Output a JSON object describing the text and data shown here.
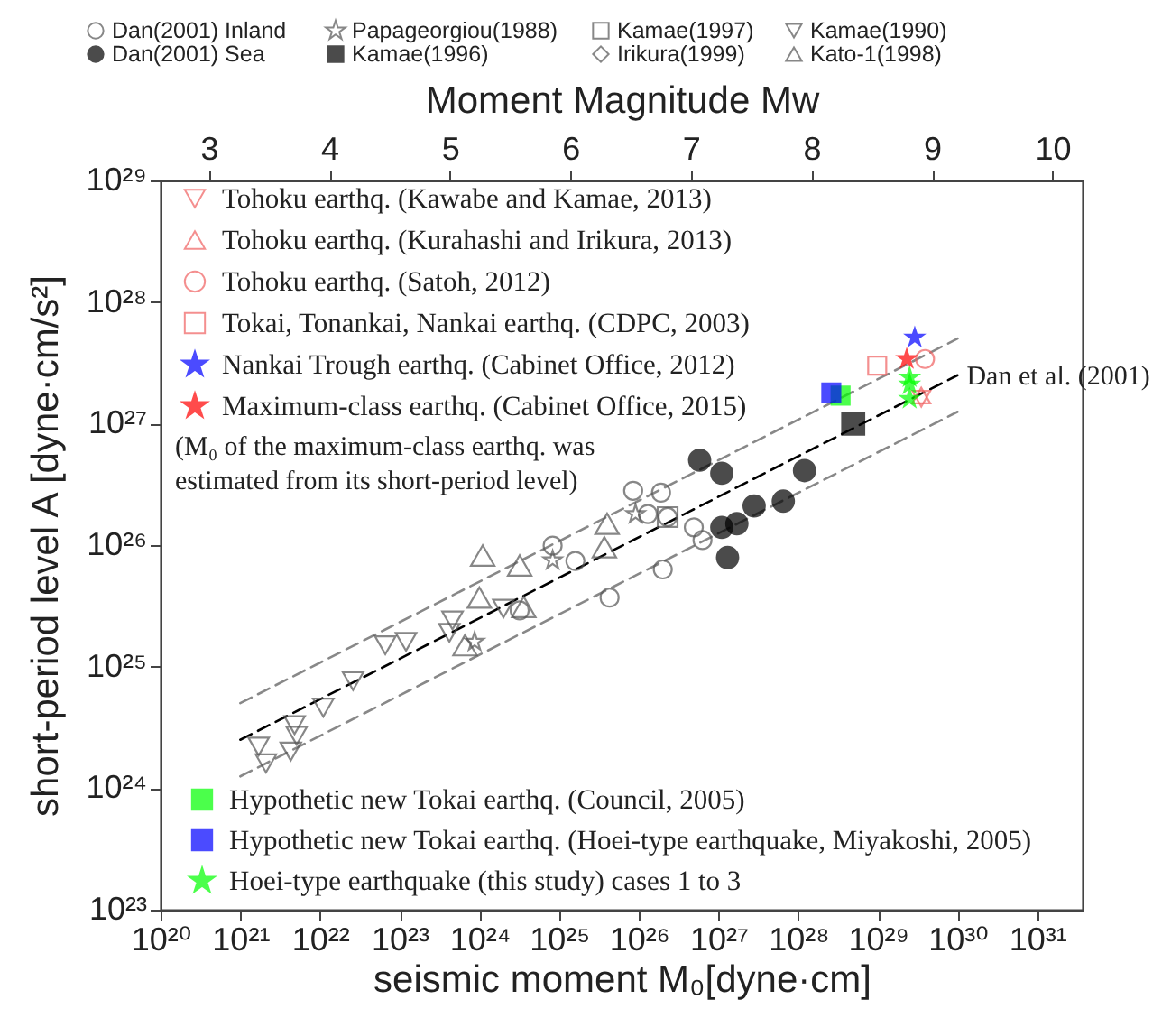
{
  "chart_data": {
    "type": "scatter",
    "xlabel": "seismic moment M₀[dyne·cm]",
    "ylabel": "short-period level A [dyne·cm/s²]",
    "x2label": "Moment Magnitude Mw",
    "log": "xy",
    "legend": "top left",
    "grid": false,
    "xlim": [
      1e+20,
      3.7e+31
    ],
    "ylim": [
      1e+23,
      1e+29
    ],
    "x2lim": [
      2.6,
      10.25
    ],
    "xticks": [
      {
        "value": 1e+20,
        "label": "10²⁰"
      },
      {
        "value": 1e+21,
        "label": "10²¹"
      },
      {
        "value": 1e+22,
        "label": "10²²"
      },
      {
        "value": 1e+23,
        "label": "10²³"
      },
      {
        "value": 1e+24,
        "label": "10²⁴"
      },
      {
        "value": 1e+25,
        "label": "10²⁵"
      },
      {
        "value": 1e+26,
        "label": "10²⁶"
      },
      {
        "value": 1e+27,
        "label": "10²⁷"
      },
      {
        "value": 1e+28,
        "label": "10²⁸"
      },
      {
        "value": 1e+29,
        "label": "10²⁹"
      },
      {
        "value": 1e+30,
        "label": "10³⁰"
      },
      {
        "value": 1e+31,
        "label": "10³¹"
      }
    ],
    "yticks": [
      {
        "value": 1e+23,
        "label": "10²³"
      },
      {
        "value": 1e+24,
        "label": "10²⁴"
      },
      {
        "value": 1e+25,
        "label": "10²⁵"
      },
      {
        "value": 1e+26,
        "label": "10²⁶"
      },
      {
        "value": 1e+27,
        "label": "10²⁷"
      },
      {
        "value": 1e+28,
        "label": "10²⁸"
      },
      {
        "value": 1e+29,
        "label": "10²⁹"
      }
    ],
    "x2ticks": [
      3,
      4,
      5,
      6,
      7,
      8,
      9,
      10
    ],
    "annotations": [
      "(M₀ of the maximum-class earthq. was estimated from its short-period level)"
    ],
    "series": [
      {
        "name": "Dan(2001) Inland",
        "type": "scatter",
        "marker": "circle-open",
        "color": "#555555",
        "x": [
          3.2e+24,
          8.3e+24,
          1.6e+25,
          4.3e+25,
          8.5e+25,
          1.9e+26,
          1.3e+26,
          2.3e+26,
          4.9e+26,
          6.3e+26,
          2e+26
        ],
        "values": [
          2.9e+25,
          9.9e+25,
          7.4e+25,
          3.7e+25,
          2.8e+26,
          2.7e+26,
          1.8e+26,
          1.7e+26,
          1.4e+26,
          1.1e+26,
          6.3e+25
        ]
      },
      {
        "name": "Papageorgiou(1988)",
        "type": "scatter",
        "marker": "star-open",
        "color": "#555555",
        "x": [
          8.3e+24,
          9.1e+25,
          8.7e+23
        ],
        "values": [
          7.5e+25,
          1.8e+26,
          1.6e+25
        ]
      },
      {
        "name": "Kamae(1997)",
        "type": "scatter",
        "marker": "square-open",
        "color": "#555555",
        "x": [
          2.3e+26
        ],
        "values": [
          1.7e+26
        ]
      },
      {
        "name": "Kamae(1990)",
        "type": "scatter",
        "marker": "triangle-down-open",
        "color": "#555555",
        "x": [
          1.7e+21,
          2.1e+21,
          4.8e+21,
          5.1e+21,
          4.3e+21,
          1.1e+22,
          2.6e+22,
          6.6e+22,
          1.2e+23,
          4.6e+23,
          4.2e+23,
          2e+24
        ],
        "values": [
          2.2e+24,
          1.6e+24,
          3.3e+24,
          2.7e+24,
          2e+24,
          4.6e+24,
          7.6e+24,
          1.5e+25,
          1.6e+25,
          2.4e+25,
          1.9e+25,
          3e+25
        ]
      },
      {
        "name": "Dan(2001) Sea",
        "type": "scatter",
        "marker": "circle",
        "color": "#000000",
        "x": [
          5.8e+26,
          1.1e+27,
          1.1e+27,
          1.7e+27,
          1.3e+27,
          2.8e+27,
          6.5e+27,
          1.2e+28
        ],
        "values": [
          5e+26,
          3.9e+26,
          1.4e+26,
          1.5e+26,
          7.9e+25,
          2.1e+26,
          2.3e+26,
          4.1e+26
        ]
      },
      {
        "name": "Kamae(1996)",
        "type": "scatter",
        "marker": "square",
        "color": "#000000",
        "x": [
          4.9e+28
        ],
        "values": [
          1e+27
        ]
      },
      {
        "name": "Irikura(1999)",
        "type": "scatter",
        "marker": "diamond-open",
        "color": "#555555"
      },
      {
        "name": "Kato-1(1998)",
        "type": "scatter",
        "marker": "triangle-open",
        "color": "#555555",
        "x": [
          1.1e+24,
          3.2e+24,
          1e+24,
          6.6e+23,
          3.6e+24,
          4e+25,
          3.7e+25
        ],
        "values": [
          8.2e+25,
          6.8e+25,
          3.7e+25,
          1.5e+25,
          3.1e+25,
          1.5e+26,
          9.6e+25
        ]
      },
      {
        "name": "Tohoku earthq. (Kawabe and Kamae, 2013)",
        "type": "scatter",
        "marker": "triangle-down-open",
        "color": "#f06060",
        "x": [
          3.5e+29
        ],
        "values": [
          1.6e+27
        ]
      },
      {
        "name": "Tohoku earthq. (Kurahashi and Irikura, 2013)",
        "type": "scatter",
        "marker": "triangle-open",
        "color": "#f06060",
        "x": [
          3.5e+29
        ],
        "values": [
          1.7e+27
        ]
      },
      {
        "name": "Tohoku earthq. (Satoh, 2012)",
        "type": "scatter",
        "marker": "circle-open",
        "color": "#f06060",
        "x": [
          3.9e+29
        ],
        "values": [
          3.4e+27
        ]
      },
      {
        "name": "Tokai, Tonankai, Nankai earthq. (CDPC, 2003)",
        "type": "scatter",
        "marker": "square-open",
        "color": "#f06060",
        "x": [
          9.8e+28
        ],
        "values": [
          3e+27
        ]
      },
      {
        "name": "Nankai Trough earthq. (Cabinet Office, 2012)",
        "type": "scatter",
        "marker": "star",
        "color": "#0000ff",
        "x": [
          2.9e+29
        ],
        "values": [
          5.1e+27
        ]
      },
      {
        "name": "Maximum-class earthq. (Cabinet Office, 2015)",
        "type": "scatter",
        "marker": "star",
        "color": "#ff0000",
        "x": [
          2.3e+29
        ],
        "values": [
          3.4e+27
        ]
      },
      {
        "name": "Hypothetic new Tokai earthq. (Council, 2005)",
        "type": "scatter",
        "marker": "square",
        "color": "#00ff00",
        "x": [
          3.4e+28
        ],
        "values": [
          1.7e+27
        ]
      },
      {
        "name": "Hypothetic new Tokai earthq. (Hoei-type earthquake, Miyakoshi, 2005)",
        "type": "scatter",
        "marker": "square",
        "color": "#0000ff",
        "x": [
          2.6e+28
        ],
        "values": [
          1.8e+27
        ]
      },
      {
        "name": "Hoei-type earthquake (this study) cases 1 to 3",
        "type": "scatter",
        "marker": "star",
        "color": "#00ff00",
        "x": [
          2.5e+29,
          2.5e+29,
          2.5e+29
        ],
        "values": [
          2.4e+27,
          2.1e+27,
          1.6e+27
        ]
      },
      {
        "name": "Dan et al. (2001)",
        "type": "line",
        "line_style": "dashed",
        "color": "#000000",
        "x": [
          1e+21,
          1e+30
        ],
        "values": [
          2.5e+24,
          2.5e+27
        ]
      },
      {
        "type": "line",
        "line_style": "dashed",
        "color": "#888888",
        "x": [
          1e+21,
          1e+30
        ],
        "values": [
          5e+24,
          5e+27
        ]
      },
      {
        "type": "line",
        "line_style": "dashed",
        "color": "#888888",
        "x": [
          1e+21,
          1e+30
        ],
        "values": [
          1.25e+24,
          1.25e+27
        ]
      }
    ]
  }
}
